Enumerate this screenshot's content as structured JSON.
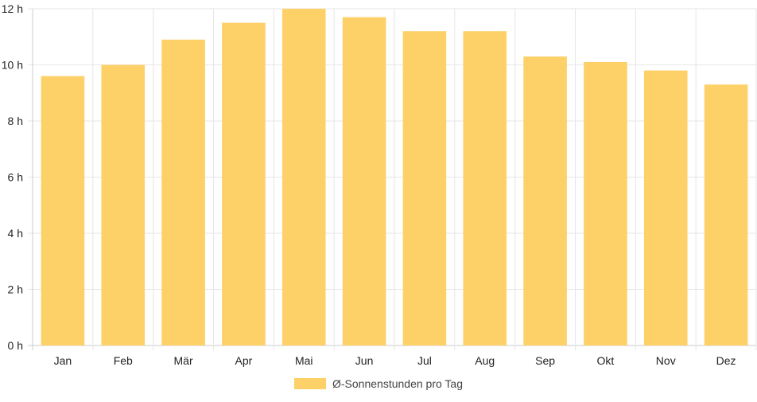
{
  "chart_data": {
    "type": "bar",
    "categories": [
      "Jan",
      "Feb",
      "Mär",
      "Apr",
      "Mai",
      "Jun",
      "Jul",
      "Aug",
      "Sep",
      "Okt",
      "Nov",
      "Dez"
    ],
    "series": [
      {
        "name": "Ø-Sonnenstunden pro Tag",
        "values": [
          9.6,
          10.0,
          10.9,
          11.5,
          12.0,
          11.7,
          11.2,
          11.2,
          10.3,
          10.1,
          9.8,
          9.3
        ]
      }
    ],
    "yticks": [
      "0 h",
      "2 h",
      "4 h",
      "6 h",
      "8 h",
      "10 h",
      "12 h"
    ],
    "ylim": [
      0,
      12
    ],
    "grid": true,
    "legend_position": "bottom",
    "colors": {
      "bar": "#fdd168",
      "grid": "#e6e6e6",
      "axis": "#cccccc"
    }
  }
}
